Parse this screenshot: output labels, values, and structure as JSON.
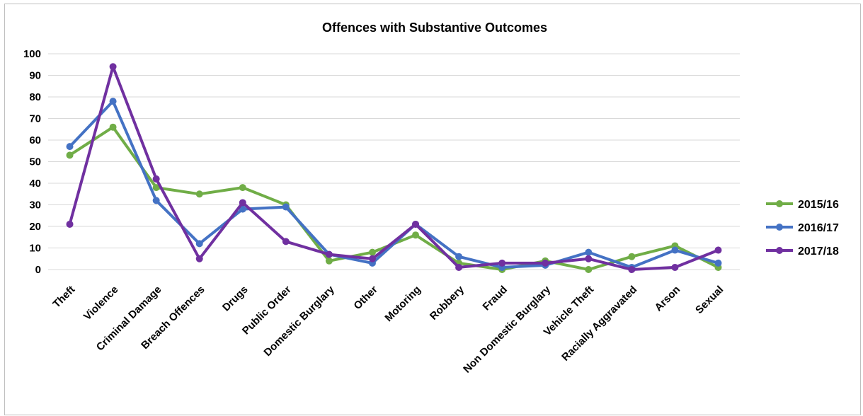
{
  "chart_data": {
    "type": "line",
    "title": "Offences with Substantive Outcomes",
    "xlabel": "",
    "ylabel": "",
    "ylim": [
      0,
      100
    ],
    "yticks": [
      0,
      10,
      20,
      30,
      40,
      50,
      60,
      70,
      80,
      90,
      100
    ],
    "grid": true,
    "legend_position": "right",
    "categories": [
      "Theft",
      "Violence",
      "Criminal Damage",
      "Breach Offences",
      "Drugs",
      "Public Order",
      "Domestic Burglary",
      "Other",
      "Motoring",
      "Robbery",
      "Fraud",
      "Non Domestic Burglary",
      "Vehicle Theft",
      "Racially Aggravated",
      "Arson",
      "Sexual"
    ],
    "series": [
      {
        "name": "2015/16",
        "color": "#70ad47",
        "values": [
          53,
          66,
          38,
          35,
          38,
          30,
          4,
          8,
          16,
          3,
          0,
          4,
          0,
          6,
          11,
          1
        ]
      },
      {
        "name": "2016/17",
        "color": "#4472c4",
        "values": [
          57,
          78,
          32,
          12,
          28,
          29,
          7,
          3,
          21,
          6,
          1,
          2,
          8,
          1,
          9,
          3
        ]
      },
      {
        "name": "2017/18",
        "color": "#7030a0",
        "values": [
          21,
          94,
          42,
          5,
          31,
          13,
          7,
          5,
          21,
          1,
          3,
          3,
          5,
          0,
          1,
          9
        ]
      }
    ]
  }
}
